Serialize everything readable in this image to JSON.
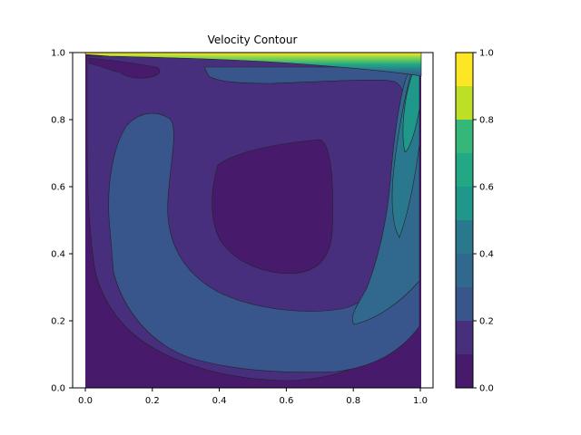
{
  "chart_data": {
    "type": "heatmap",
    "subtype": "filled-contour",
    "title": "Velocity Contour",
    "xlabel": "",
    "ylabel": "",
    "xlim": [
      0.0,
      1.0
    ],
    "ylim": [
      0.0,
      1.0
    ],
    "x_ticks": [
      "0.0",
      "0.2",
      "0.4",
      "0.6",
      "0.8",
      "1.0"
    ],
    "y_ticks": [
      "0.0",
      "0.2",
      "0.4",
      "0.6",
      "0.8",
      "1.0"
    ],
    "colormap": "viridis",
    "grid": false,
    "colorbar": {
      "range": [
        0.0,
        1.0
      ],
      "levels": [
        0.0,
        0.1,
        0.2,
        0.3,
        0.4,
        0.5,
        0.6,
        0.7,
        0.8,
        0.9,
        1.0
      ],
      "ticks": [
        "0.0",
        "0.2",
        "0.4",
        "0.6",
        "0.8",
        "1.0"
      ],
      "colors": [
        "#481a6c",
        "#472f7d",
        "#414487",
        "#39568c",
        "#31688e",
        "#2a788e",
        "#23888e",
        "#1f988b",
        "#22a884",
        "#35b779",
        "#7ad151",
        "#bddf26",
        "#fde725"
      ]
    },
    "features": [
      "low-speed vortex core centred near (0.55, 0.55)",
      "high-speed shear layer along the lid at y = 1.0",
      "jet along the right wall near x = 0.95"
    ]
  }
}
